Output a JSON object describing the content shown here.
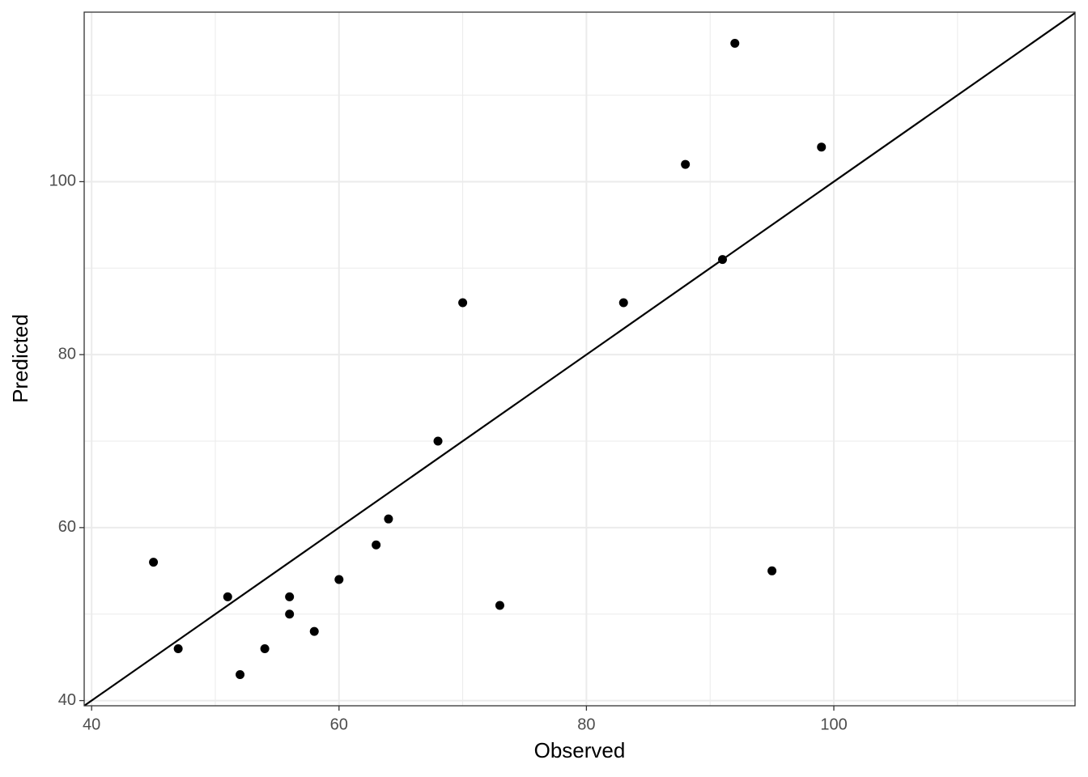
{
  "chart_data": {
    "type": "scatter",
    "x_label": "Observed",
    "y_label": "Predicted",
    "x": [
      45,
      47,
      51,
      52,
      54,
      56,
      56,
      58,
      60,
      63,
      64,
      68,
      70,
      73,
      83,
      88,
      91,
      92,
      95,
      99
    ],
    "values": [
      56,
      46,
      52,
      43,
      46,
      52,
      50,
      48,
      54,
      58,
      61,
      70,
      86,
      51,
      86,
      102,
      91,
      116,
      55,
      104
    ],
    "color": "#000000",
    "xlim": [
      39.4,
      119.5
    ],
    "ylim": [
      39.4,
      119.6
    ],
    "xticks": [
      40,
      60,
      80,
      100
    ],
    "yticks": [
      40,
      60,
      80,
      100
    ],
    "minor_xticks": [
      50,
      70,
      90,
      110
    ],
    "minor_yticks": [
      50,
      70,
      90,
      110
    ],
    "grid": true,
    "reference_line": {
      "slope": 1,
      "intercept": 0
    }
  }
}
